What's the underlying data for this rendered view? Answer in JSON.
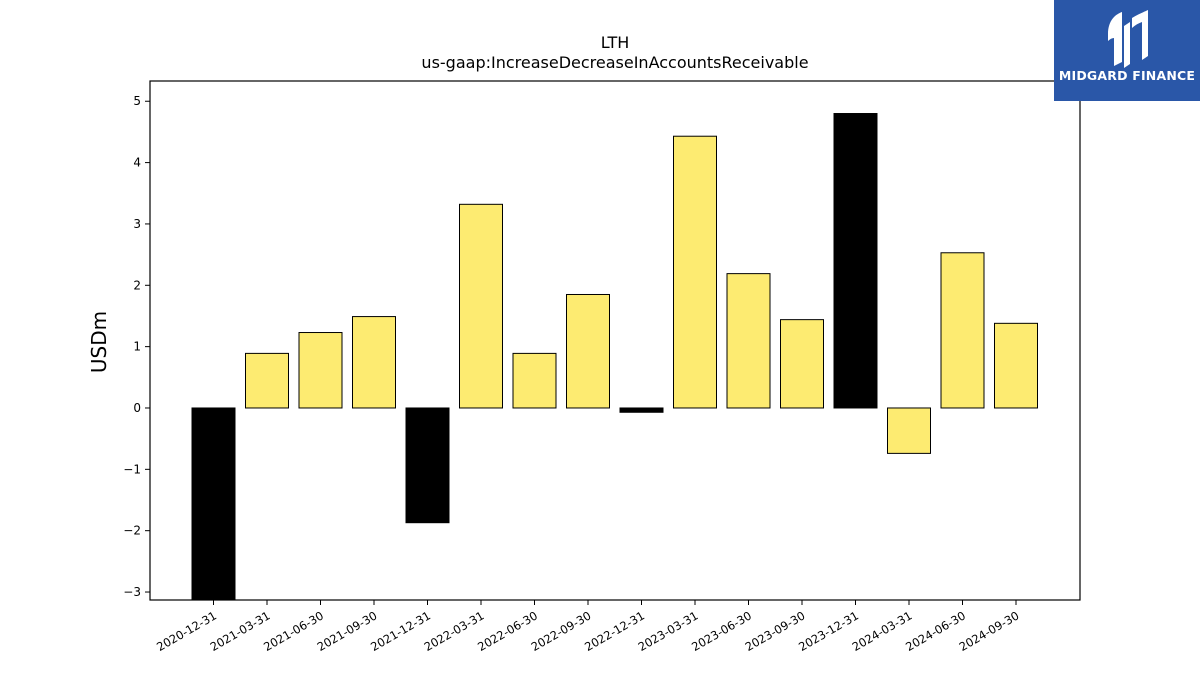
{
  "brand": {
    "name": "MIDGARD FINANCE",
    "color": "#2a57a8"
  },
  "chart_data": {
    "type": "bar",
    "title": "LTH",
    "subtitle": "us-gaap:IncreaseDecreaseInAccountsReceivable",
    "xlabel": "",
    "ylabel": "USDm",
    "ylim": [
      -3.13,
      5.33
    ],
    "yticks": [
      -3,
      -2,
      -1,
      0,
      1,
      2,
      3,
      4,
      5
    ],
    "grid": false,
    "categories": [
      "2020-12-31",
      "2021-03-31",
      "2021-06-30",
      "2021-09-30",
      "2021-12-31",
      "2022-03-31",
      "2022-06-30",
      "2022-09-30",
      "2022-12-31",
      "2023-03-31",
      "2023-06-30",
      "2023-09-30",
      "2023-12-31",
      "2024-03-31",
      "2024-06-30",
      "2024-09-30"
    ],
    "values": [
      -3.15,
      0.89,
      1.23,
      1.49,
      -1.87,
      3.32,
      0.89,
      1.85,
      -0.07,
      4.43,
      2.19,
      1.44,
      4.8,
      -0.74,
      2.53,
      1.38
    ],
    "highlight": [
      true,
      false,
      false,
      false,
      true,
      false,
      false,
      false,
      true,
      false,
      false,
      false,
      true,
      false,
      false,
      false
    ],
    "colors": {
      "default": "#fdeb71",
      "highlight": "#000000",
      "edge": "#000000"
    }
  }
}
